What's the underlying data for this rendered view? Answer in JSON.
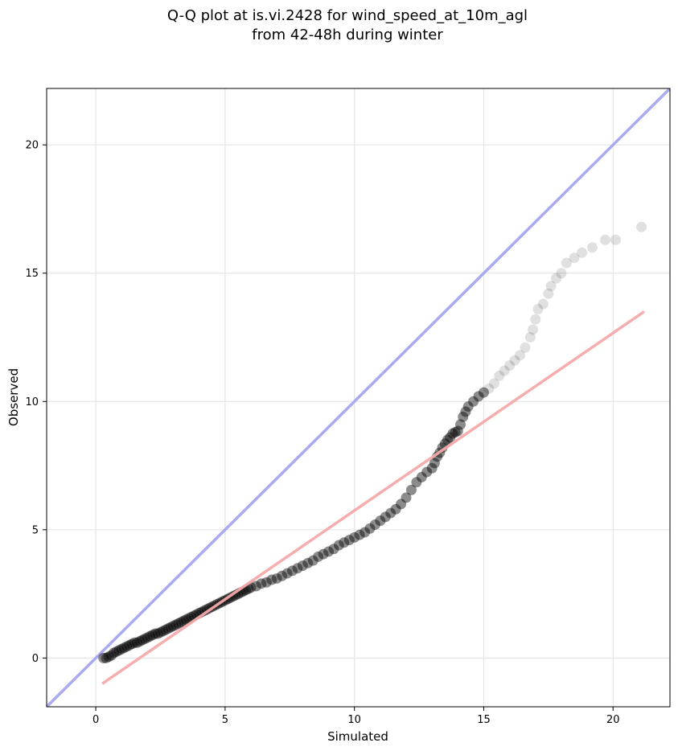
{
  "chart_data": {
    "type": "scatter",
    "title_lines": [
      "Q-Q plot at is.vi.2428 for wind_speed_at_10m_agl",
      "from 42-48h during winter"
    ],
    "xlabel": "Simulated",
    "ylabel": "Observed",
    "xlim": [
      -1.9,
      22.2
    ],
    "ylim": [
      -1.9,
      22.2
    ],
    "x_ticks": [
      0,
      5,
      10,
      15,
      20
    ],
    "y_ticks": [
      0,
      5,
      10,
      15,
      20
    ],
    "grid": true,
    "identity_line": {
      "x": [
        -1.9,
        22.2
      ],
      "y": [
        -1.9,
        22.2
      ],
      "color": "#a9aaf0"
    },
    "fit_line": {
      "x": [
        0.25,
        21.2
      ],
      "y": [
        -1.0,
        13.5
      ],
      "color": "#f5a9a9"
    },
    "point_color": "#000000",
    "points": [
      [
        0.3,
        0.0
      ],
      [
        0.4,
        0.0
      ],
      [
        0.5,
        0.05
      ],
      [
        0.6,
        0.1
      ],
      [
        0.7,
        0.2
      ],
      [
        0.8,
        0.25
      ],
      [
        0.9,
        0.3
      ],
      [
        1.0,
        0.35
      ],
      [
        1.1,
        0.4
      ],
      [
        1.2,
        0.45
      ],
      [
        1.3,
        0.5
      ],
      [
        1.4,
        0.55
      ],
      [
        1.5,
        0.6
      ],
      [
        1.6,
        0.6
      ],
      [
        1.7,
        0.65
      ],
      [
        1.8,
        0.7
      ],
      [
        1.9,
        0.75
      ],
      [
        2.0,
        0.8
      ],
      [
        2.1,
        0.85
      ],
      [
        2.2,
        0.9
      ],
      [
        2.3,
        0.95
      ],
      [
        2.4,
        0.95
      ],
      [
        2.5,
        1.0
      ],
      [
        2.6,
        1.05
      ],
      [
        2.7,
        1.1
      ],
      [
        2.8,
        1.15
      ],
      [
        2.9,
        1.2
      ],
      [
        3.0,
        1.25
      ],
      [
        3.1,
        1.3
      ],
      [
        3.2,
        1.35
      ],
      [
        3.3,
        1.4
      ],
      [
        3.4,
        1.45
      ],
      [
        3.5,
        1.5
      ],
      [
        3.6,
        1.55
      ],
      [
        3.7,
        1.6
      ],
      [
        3.8,
        1.65
      ],
      [
        3.9,
        1.7
      ],
      [
        4.0,
        1.75
      ],
      [
        4.1,
        1.8
      ],
      [
        4.2,
        1.85
      ],
      [
        4.3,
        1.9
      ],
      [
        4.4,
        1.95
      ],
      [
        4.5,
        2.0
      ],
      [
        4.6,
        2.05
      ],
      [
        4.7,
        2.1
      ],
      [
        4.8,
        2.15
      ],
      [
        4.9,
        2.2
      ],
      [
        5.0,
        2.25
      ],
      [
        5.1,
        2.3
      ],
      [
        5.2,
        2.35
      ],
      [
        5.3,
        2.4
      ],
      [
        5.4,
        2.45
      ],
      [
        5.5,
        2.5
      ],
      [
        5.6,
        2.55
      ],
      [
        5.7,
        2.6
      ],
      [
        5.8,
        2.65
      ],
      [
        5.9,
        2.7
      ],
      [
        6.0,
        2.75
      ],
      [
        6.2,
        2.8
      ],
      [
        6.4,
        2.9
      ],
      [
        6.6,
        2.95
      ],
      [
        6.8,
        3.05
      ],
      [
        7.0,
        3.1
      ],
      [
        7.2,
        3.2
      ],
      [
        7.4,
        3.3
      ],
      [
        7.6,
        3.4
      ],
      [
        7.8,
        3.5
      ],
      [
        8.0,
        3.6
      ],
      [
        8.2,
        3.7
      ],
      [
        8.4,
        3.8
      ],
      [
        8.6,
        3.95
      ],
      [
        8.8,
        4.05
      ],
      [
        9.0,
        4.15
      ],
      [
        9.2,
        4.25
      ],
      [
        9.4,
        4.4
      ],
      [
        9.6,
        4.5
      ],
      [
        9.8,
        4.6
      ],
      [
        10.0,
        4.7
      ],
      [
        10.2,
        4.8
      ],
      [
        10.4,
        4.9
      ],
      [
        10.6,
        5.05
      ],
      [
        10.8,
        5.2
      ],
      [
        11.0,
        5.35
      ],
      [
        11.2,
        5.5
      ],
      [
        11.4,
        5.65
      ],
      [
        11.6,
        5.8
      ],
      [
        11.8,
        6.0
      ],
      [
        12.0,
        6.25
      ],
      [
        12.2,
        6.55
      ],
      [
        12.4,
        6.85
      ],
      [
        12.6,
        7.05
      ],
      [
        12.8,
        7.25
      ],
      [
        13.0,
        7.4
      ],
      [
        13.1,
        7.6
      ],
      [
        13.2,
        7.85
      ],
      [
        13.3,
        8.0
      ],
      [
        13.4,
        8.2
      ],
      [
        13.5,
        8.35
      ],
      [
        13.6,
        8.5
      ],
      [
        13.7,
        8.6
      ],
      [
        13.8,
        8.75
      ],
      [
        13.9,
        8.8
      ],
      [
        14.0,
        8.85
      ],
      [
        14.1,
        9.1
      ],
      [
        14.2,
        9.4
      ],
      [
        14.3,
        9.6
      ],
      [
        14.4,
        9.8
      ],
      [
        14.6,
        10.0
      ],
      [
        14.8,
        10.2
      ],
      [
        15.0,
        10.35
      ],
      [
        15.2,
        10.5
      ],
      [
        15.4,
        10.7
      ],
      [
        15.6,
        11.0
      ],
      [
        15.8,
        11.2
      ],
      [
        16.0,
        11.4
      ],
      [
        16.2,
        11.6
      ],
      [
        16.4,
        11.8
      ],
      [
        16.6,
        12.1
      ],
      [
        16.8,
        12.5
      ],
      [
        16.9,
        12.8
      ],
      [
        17.0,
        13.2
      ],
      [
        17.1,
        13.6
      ],
      [
        17.3,
        13.8
      ],
      [
        17.5,
        14.2
      ],
      [
        17.6,
        14.5
      ],
      [
        17.8,
        14.8
      ],
      [
        18.0,
        15.0
      ],
      [
        18.2,
        15.4
      ],
      [
        18.5,
        15.6
      ],
      [
        18.8,
        15.8
      ],
      [
        19.2,
        16.0
      ],
      [
        19.7,
        16.3
      ],
      [
        20.1,
        16.3
      ],
      [
        21.1,
        16.8
      ]
    ]
  }
}
